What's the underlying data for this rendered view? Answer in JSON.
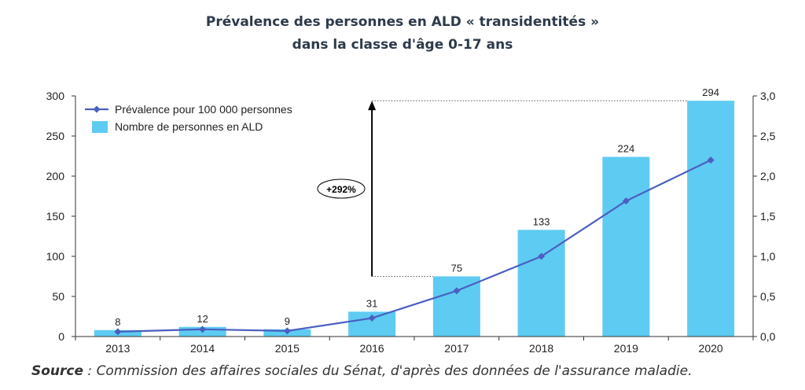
{
  "title_line1": "Prévalence des personnes en ALD « transidentités »",
  "title_line2": "dans la classe d'âge 0-17 ans",
  "source_label": "Source",
  "source_text": " : Commission des affaires sociales du Sénat, d'après des données de l'assurance maladie.",
  "annotation": "+292%",
  "colors": {
    "bar": "#5ecbf2",
    "line": "#4a5fc1",
    "axis": "#333333"
  },
  "chart_data": {
    "type": "bar",
    "categories": [
      "2013",
      "2014",
      "2015",
      "2016",
      "2017",
      "2018",
      "2019",
      "2020"
    ],
    "ylim": [
      0,
      300
    ],
    "y_ticks": [
      "0",
      "50",
      "100",
      "150",
      "200",
      "250",
      "300"
    ],
    "y2lim": [
      0,
      3
    ],
    "y2_ticks": [
      "0,0",
      "0,5",
      "1,0",
      "1,5",
      "2,0",
      "2,5",
      "3,0"
    ],
    "legend_position": "top-left",
    "series": [
      {
        "name": "Nombre de personnes en ALD",
        "type": "bar",
        "axis": "left",
        "values": [
          8,
          12,
          9,
          31,
          75,
          133,
          224,
          294
        ],
        "labels": [
          "8",
          "12",
          "9",
          "31",
          "75",
          "133",
          "224",
          "294"
        ]
      },
      {
        "name": "Prévalence pour 100 000 personnes",
        "type": "line",
        "axis": "right",
        "values": [
          0.06,
          0.09,
          0.07,
          0.23,
          0.57,
          1.0,
          1.69,
          2.2
        ]
      }
    ]
  }
}
